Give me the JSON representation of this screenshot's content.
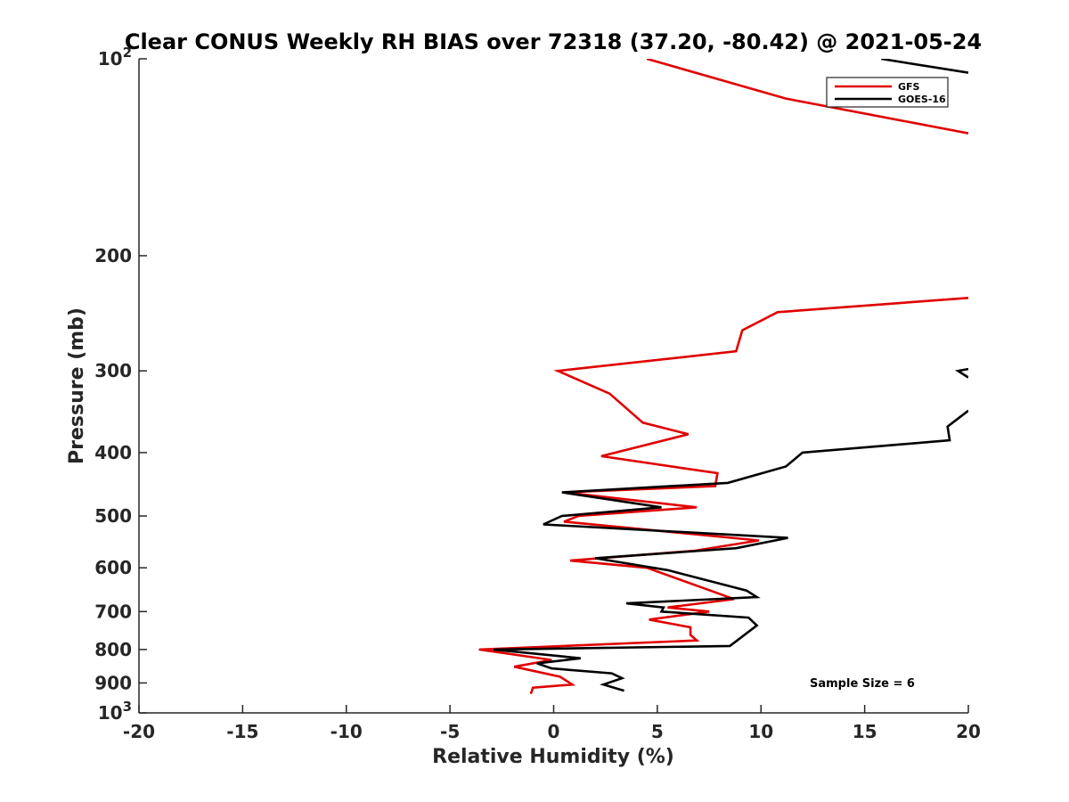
{
  "chart_data": {
    "type": "line",
    "title": "Clear CONUS Weekly RH BIAS over 72318 (37.20, -80.42) @ 2021-05-24",
    "xlabel": "Relative Humidity (%)",
    "ylabel": "Pressure (mb)",
    "xlim": [
      -20,
      20
    ],
    "ylim": [
      100,
      1000
    ],
    "y_scale": "log",
    "y_reversed": true,
    "grid": false,
    "legend_position": "top-right",
    "x_ticks": [
      "-20",
      "-15",
      "-10",
      "-5",
      "0",
      "5",
      "10",
      "15",
      "20"
    ],
    "y_ticks": [
      {
        "value": 100,
        "base": "10",
        "exp": "2"
      },
      {
        "value": 200,
        "label": "200"
      },
      {
        "value": 300,
        "label": "300"
      },
      {
        "value": 400,
        "label": "400"
      },
      {
        "value": 500,
        "label": "500"
      },
      {
        "value": 600,
        "label": "600"
      },
      {
        "value": 700,
        "label": "700"
      },
      {
        "value": 800,
        "label": "800"
      },
      {
        "value": 900,
        "label": "900"
      },
      {
        "value": 1000,
        "base": "10",
        "exp": "3"
      }
    ],
    "annotation": "Sample Size = 6",
    "series": [
      {
        "name": "GFS",
        "color": "#e00000",
        "points": [
          [
            4.5,
            100
          ],
          [
            11.2,
            115
          ],
          [
            20.0,
            130
          ],
          null,
          [
            20.0,
            232
          ],
          [
            10.8,
            244
          ],
          [
            9.1,
            260
          ],
          [
            8.8,
            280
          ],
          [
            0.2,
            300
          ],
          [
            2.7,
            325
          ],
          [
            4.3,
            360
          ],
          [
            6.5,
            375
          ],
          [
            2.3,
            405
          ],
          [
            7.9,
            430
          ],
          [
            7.8,
            450
          ],
          [
            0.5,
            460
          ],
          [
            6.9,
            485
          ],
          [
            1.2,
            500
          ],
          [
            0.5,
            510
          ],
          [
            9.9,
            545
          ],
          [
            6.8,
            565
          ],
          [
            0.8,
            585
          ],
          [
            4.5,
            600
          ],
          [
            8.7,
            670
          ],
          [
            5.5,
            690
          ],
          [
            7.5,
            700
          ],
          [
            4.6,
            720
          ],
          [
            6.6,
            740
          ],
          [
            6.6,
            760
          ],
          [
            6.9,
            775
          ],
          [
            -3.6,
            800
          ],
          [
            -0.1,
            830
          ],
          [
            -1.9,
            850
          ],
          [
            0.3,
            880
          ],
          [
            0.9,
            905
          ],
          [
            -1.0,
            915
          ],
          [
            -1.1,
            935
          ]
        ]
      },
      {
        "name": "GOES-16",
        "color": "#000000",
        "points": [
          [
            15.8,
            100
          ],
          [
            20.0,
            105
          ],
          null,
          [
            20.0,
            298
          ],
          [
            19.5,
            300
          ],
          [
            20.0,
            307
          ],
          null,
          [
            20.0,
            345
          ],
          [
            19.0,
            365
          ],
          [
            19.1,
            383
          ],
          [
            12.0,
            400
          ],
          [
            11.2,
            420
          ],
          [
            8.4,
            445
          ],
          [
            0.4,
            460
          ],
          [
            5.2,
            485
          ],
          [
            0.4,
            500
          ],
          [
            -0.5,
            515
          ],
          [
            11.3,
            540
          ],
          [
            8.8,
            560
          ],
          [
            2.0,
            580
          ],
          [
            5.5,
            605
          ],
          [
            9.3,
            650
          ],
          [
            9.8,
            665
          ],
          [
            3.5,
            680
          ],
          [
            5.3,
            690
          ],
          [
            5.2,
            700
          ],
          [
            9.4,
            715
          ],
          [
            9.8,
            735
          ],
          [
            8.5,
            790
          ],
          [
            -2.9,
            800
          ],
          [
            1.3,
            825
          ],
          [
            -0.8,
            840
          ],
          [
            -0.1,
            855
          ],
          [
            2.8,
            870
          ],
          [
            3.3,
            885
          ],
          [
            2.4,
            905
          ],
          [
            3.4,
            925
          ]
        ]
      }
    ]
  }
}
